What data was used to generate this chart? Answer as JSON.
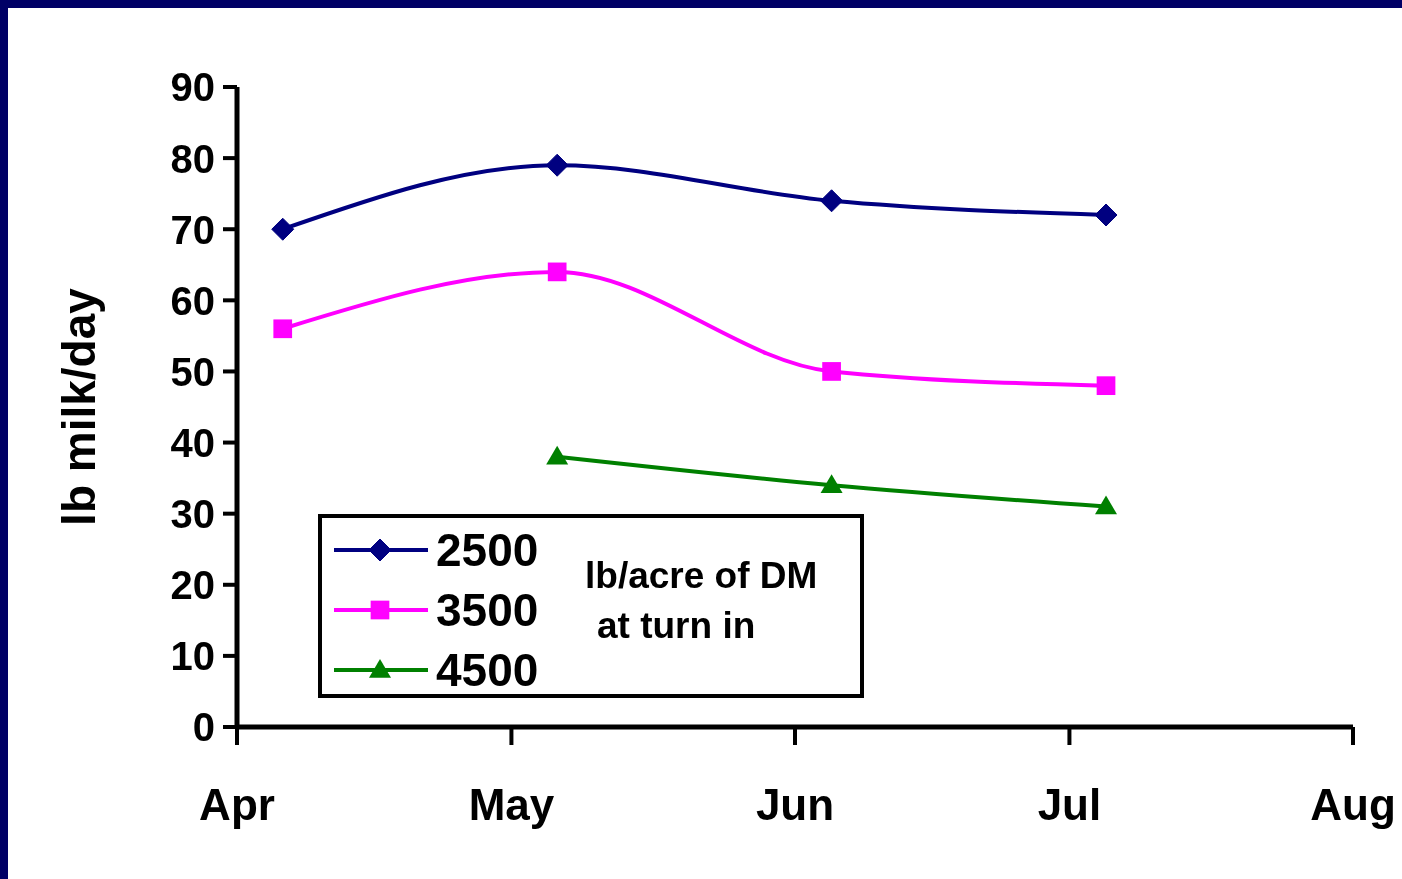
{
  "chart_data": {
    "type": "line",
    "ylabel": "lb milk/day",
    "legend_title": "lb/acre of DM at turn in",
    "legend": "bottom left",
    "grid": false,
    "xlim": [
      "--04-01",
      "--08-01"
    ],
    "xticks": [
      {
        "value": "--04-01",
        "label": "Apr"
      },
      {
        "value": "--05-01",
        "label": "May"
      },
      {
        "value": "--06-01",
        "label": "Jun"
      },
      {
        "value": "--07-01",
        "label": "Jul"
      },
      {
        "value": "--08-01",
        "label": "Aug"
      }
    ],
    "ylim": [
      0,
      90
    ],
    "yticks": [
      0,
      10,
      20,
      30,
      40,
      50,
      60,
      70,
      80,
      90
    ],
    "series": [
      {
        "name": "2500",
        "color": "#000080",
        "marker": "diamond",
        "x": [
          "--04-06",
          "--05-06",
          "--06-05",
          "--07-05"
        ],
        "values": [
          70,
          79,
          74,
          72
        ]
      },
      {
        "name": "3500",
        "color": "#ff00ff",
        "marker": "square",
        "x": [
          "--04-06",
          "--05-06",
          "--06-05",
          "--07-05"
        ],
        "values": [
          56,
          64,
          50,
          48
        ]
      },
      {
        "name": "4500",
        "color": "#008000",
        "marker": "triangle",
        "x": [
          "--05-06",
          "--06-05",
          "--07-05"
        ],
        "values": [
          38,
          34,
          31
        ]
      }
    ]
  }
}
